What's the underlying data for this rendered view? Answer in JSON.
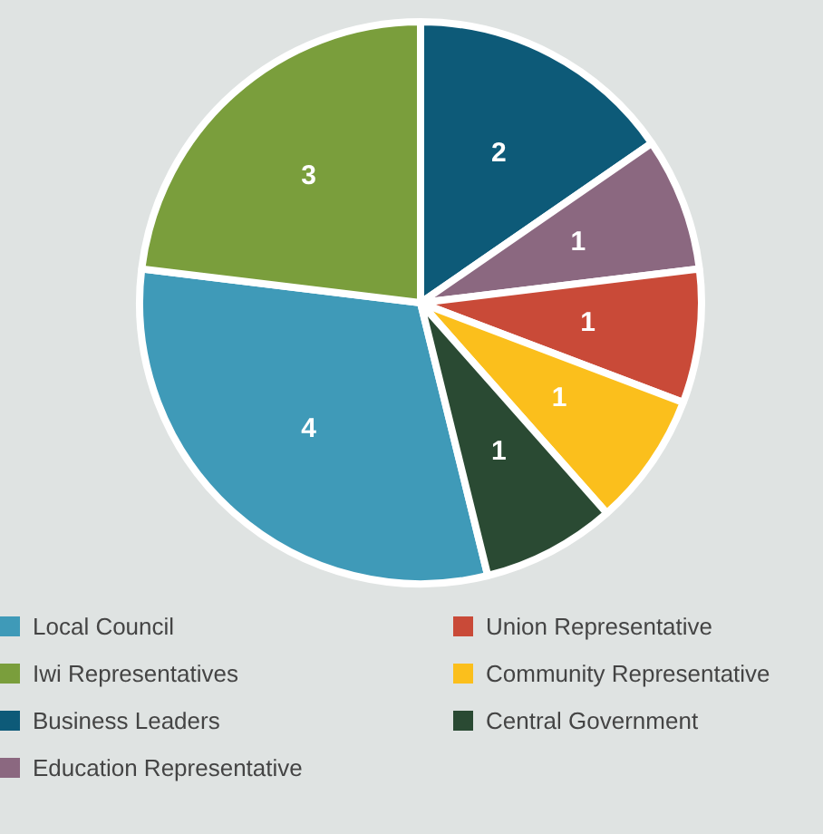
{
  "chart_data": {
    "type": "pie",
    "categories": [
      "Local Council",
      "Iwi Representatives",
      "Business Leaders",
      "Education Representative",
      "Union Representative",
      "Community Representative",
      "Central Government"
    ],
    "values": [
      4,
      3,
      2,
      1,
      1,
      1,
      1
    ],
    "colors": [
      "#3f9ab8",
      "#7a9e3c",
      "#0d5a78",
      "#8b6880",
      "#c94a38",
      "#fbbf1c",
      "#2a4a33"
    ],
    "data_labels": true,
    "legend": "bottom"
  }
}
